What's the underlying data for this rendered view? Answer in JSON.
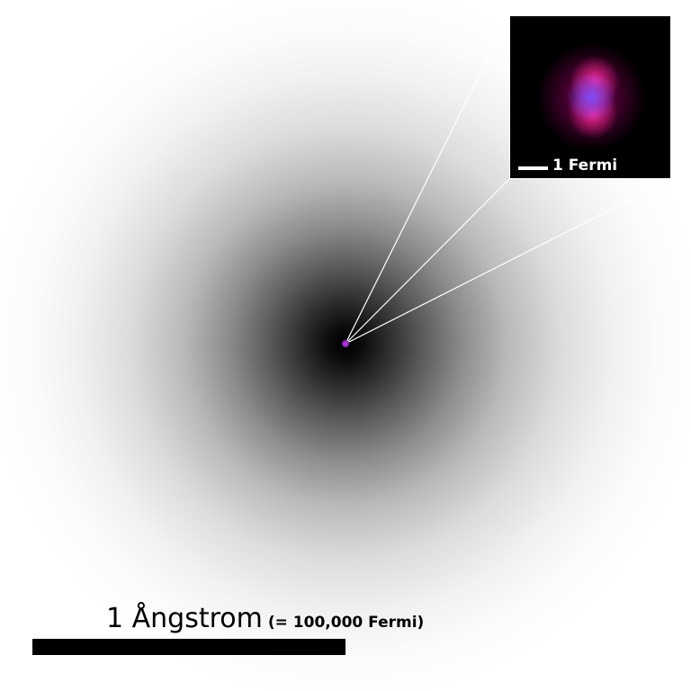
{
  "image": {
    "background_color": "#ffffff",
    "cloud_center_color": "#000000",
    "nucleus_color": "#b03fd8"
  },
  "inset": {
    "scale_label": "1 Fermi",
    "background_color": "#000000",
    "glow_colors": [
      "#ff2896",
      "#7850ff"
    ]
  },
  "scale": {
    "primary_label": "1 Ångstrom",
    "secondary_label": "(= 100,000 Fermi)"
  }
}
